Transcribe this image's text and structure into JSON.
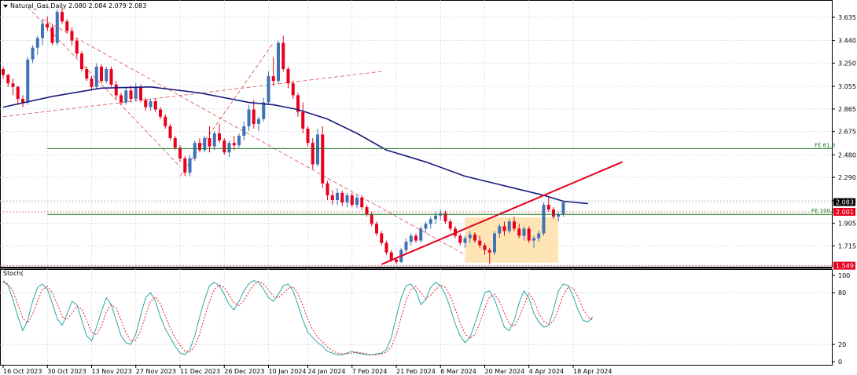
{
  "window": {
    "symbol": "Natural_Gas",
    "timeframe": "Daily",
    "header": "Natural_Gas,Daily  2.080 2.084 2.079 2.083"
  },
  "indicator_label": "Stoch(",
  "colors": {
    "background": "#ffffff",
    "grid": "#c8d4e0",
    "bull": "#3f73b7",
    "bear": "#e8001c",
    "ma": "#1a1a80",
    "trend_dashed": "#e06060",
    "trend_solid": "#e8001c",
    "fib": "#1f7a1f",
    "rect_fill": "#ffe0a8",
    "stoch_main": "#2aa8a8",
    "stoch_signal": "#e8001c",
    "price_tag_current": "#000000",
    "price_tag_levels": "#e8001c"
  },
  "chart_data": [
    {
      "type": "candlestick",
      "title": "Natural_Gas,Daily",
      "price_axis": [
        "3.635",
        "3.440",
        "3.250",
        "3.055",
        "2.865",
        "2.675",
        "2.480",
        "2.290",
        "2.095",
        "1.905",
        "1.715"
      ],
      "ylim": [
        1.54,
        3.78
      ],
      "xlabels": [
        "16 Oct 2023",
        "30 Oct 2023",
        "13 Nov 2023",
        "27 Nov 2023",
        "11 Dec 2023",
        "26 Dec 2023",
        "10 Jan 2024",
        "24 Jan 2024",
        "7 Feb 2024",
        "21 Feb 2024",
        "6 Mar 2024",
        "20 Mar 2024",
        "4 Apr 2024",
        "18 Apr 2024"
      ],
      "ohlc": [
        [
          3.2,
          3.22,
          3.12,
          3.15
        ],
        [
          3.15,
          3.16,
          3.05,
          3.08
        ],
        [
          3.08,
          3.12,
          2.98,
          3.05
        ],
        [
          3.05,
          3.06,
          2.9,
          2.95
        ],
        [
          2.95,
          2.98,
          2.88,
          2.92
        ],
        [
          2.92,
          3.3,
          2.9,
          3.28
        ],
        [
          3.28,
          3.4,
          3.25,
          3.38
        ],
        [
          3.38,
          3.48,
          3.32,
          3.46
        ],
        [
          3.46,
          3.62,
          3.4,
          3.58
        ],
        [
          3.58,
          3.64,
          3.52,
          3.55
        ],
        [
          3.55,
          3.58,
          3.4,
          3.42
        ],
        [
          3.42,
          3.7,
          3.4,
          3.68
        ],
        [
          3.68,
          3.72,
          3.58,
          3.6
        ],
        [
          3.6,
          3.62,
          3.5,
          3.52
        ],
        [
          3.52,
          3.55,
          3.4,
          3.44
        ],
        [
          3.44,
          3.46,
          3.3,
          3.33
        ],
        [
          3.33,
          3.35,
          3.18,
          3.2
        ],
        [
          3.2,
          3.22,
          3.1,
          3.12
        ],
        [
          3.12,
          3.14,
          3.02,
          3.05
        ],
        [
          3.05,
          3.25,
          3.03,
          3.22
        ],
        [
          3.22,
          3.24,
          3.08,
          3.1
        ],
        [
          3.1,
          3.22,
          3.08,
          3.2
        ],
        [
          3.2,
          3.22,
          3.05,
          3.07
        ],
        [
          3.07,
          3.1,
          2.95,
          2.98
        ],
        [
          2.98,
          3.0,
          2.9,
          2.92
        ],
        [
          2.92,
          3.05,
          2.9,
          3.02
        ],
        [
          3.02,
          3.06,
          2.92,
          2.95
        ],
        [
          2.95,
          3.08,
          2.93,
          3.05
        ],
        [
          3.05,
          3.07,
          2.92,
          2.94
        ],
        [
          2.94,
          2.96,
          2.85,
          2.88
        ],
        [
          2.88,
          2.95,
          2.85,
          2.93
        ],
        [
          2.93,
          2.95,
          2.84,
          2.86
        ],
        [
          2.86,
          2.88,
          2.78,
          2.8
        ],
        [
          2.8,
          2.82,
          2.7,
          2.72
        ],
        [
          2.72,
          2.74,
          2.6,
          2.62
        ],
        [
          2.62,
          2.64,
          2.52,
          2.54
        ],
        [
          2.54,
          2.56,
          2.42,
          2.45
        ],
        [
          2.45,
          2.47,
          2.3,
          2.33
        ],
        [
          2.33,
          2.48,
          2.3,
          2.45
        ],
        [
          2.45,
          2.6,
          2.43,
          2.58
        ],
        [
          2.58,
          2.62,
          2.5,
          2.52
        ],
        [
          2.52,
          2.64,
          2.5,
          2.62
        ],
        [
          2.62,
          2.72,
          2.5,
          2.55
        ],
        [
          2.55,
          2.68,
          2.52,
          2.66
        ],
        [
          2.66,
          2.74,
          2.58,
          2.6
        ],
        [
          2.6,
          2.62,
          2.48,
          2.5
        ],
        [
          2.5,
          2.6,
          2.46,
          2.58
        ],
        [
          2.58,
          2.64,
          2.52,
          2.56
        ],
        [
          2.56,
          2.66,
          2.54,
          2.64
        ],
        [
          2.64,
          2.76,
          2.6,
          2.72
        ],
        [
          2.72,
          2.9,
          2.68,
          2.86
        ],
        [
          2.86,
          2.94,
          2.7,
          2.74
        ],
        [
          2.74,
          2.8,
          2.68,
          2.78
        ],
        [
          2.78,
          2.96,
          2.76,
          2.92
        ],
        [
          2.92,
          3.18,
          2.9,
          3.14
        ],
        [
          3.14,
          3.3,
          3.06,
          3.1
        ],
        [
          3.1,
          3.44,
          3.08,
          3.42
        ],
        [
          3.42,
          3.48,
          3.18,
          3.2
        ],
        [
          3.2,
          3.22,
          3.04,
          3.08
        ],
        [
          3.08,
          3.1,
          2.95,
          2.98
        ],
        [
          2.98,
          3.0,
          2.8,
          2.84
        ],
        [
          2.84,
          2.92,
          2.66,
          2.7
        ],
        [
          2.7,
          2.72,
          2.55,
          2.58
        ],
        [
          2.58,
          2.62,
          2.36,
          2.4
        ],
        [
          2.4,
          2.7,
          2.38,
          2.65
        ],
        [
          2.65,
          2.72,
          2.2,
          2.24
        ],
        [
          2.24,
          2.26,
          2.1,
          2.14
        ],
        [
          2.14,
          2.18,
          2.06,
          2.1
        ],
        [
          2.1,
          2.2,
          2.06,
          2.16
        ],
        [
          2.16,
          2.18,
          2.05,
          2.08
        ],
        [
          2.08,
          2.16,
          2.04,
          2.14
        ],
        [
          2.14,
          2.16,
          2.04,
          2.06
        ],
        [
          2.06,
          2.14,
          2.03,
          2.12
        ],
        [
          2.12,
          2.14,
          2.02,
          2.04
        ],
        [
          2.04,
          2.06,
          1.96,
          1.98
        ],
        [
          1.98,
          2.0,
          1.88,
          1.9
        ],
        [
          1.9,
          1.92,
          1.8,
          1.82
        ],
        [
          1.82,
          1.84,
          1.72,
          1.74
        ],
        [
          1.74,
          1.76,
          1.64,
          1.66
        ],
        [
          1.66,
          1.68,
          1.58,
          1.6
        ],
        [
          1.6,
          1.62,
          1.56,
          1.58
        ],
        [
          1.58,
          1.7,
          1.57,
          1.68
        ],
        [
          1.68,
          1.78,
          1.66,
          1.75
        ],
        [
          1.75,
          1.82,
          1.72,
          1.8
        ],
        [
          1.8,
          1.82,
          1.74,
          1.76
        ],
        [
          1.76,
          1.88,
          1.74,
          1.86
        ],
        [
          1.86,
          1.92,
          1.82,
          1.9
        ],
        [
          1.9,
          1.96,
          1.86,
          1.94
        ],
        [
          1.94,
          2.0,
          1.9,
          1.97
        ],
        [
          1.97,
          2.02,
          1.93,
          1.99
        ],
        [
          1.99,
          2.01,
          1.9,
          1.92
        ],
        [
          1.92,
          1.94,
          1.84,
          1.86
        ],
        [
          1.86,
          1.88,
          1.78,
          1.8
        ],
        [
          1.8,
          1.82,
          1.72,
          1.74
        ],
        [
          1.74,
          1.8,
          1.7,
          1.78
        ],
        [
          1.78,
          1.84,
          1.74,
          1.81
        ],
        [
          1.81,
          1.83,
          1.74,
          1.76
        ],
        [
          1.76,
          1.8,
          1.7,
          1.72
        ],
        [
          1.72,
          1.74,
          1.64,
          1.68
        ],
        [
          1.68,
          1.7,
          1.56,
          1.66
        ],
        [
          1.66,
          1.84,
          1.64,
          1.82
        ],
        [
          1.82,
          1.9,
          1.78,
          1.88
        ],
        [
          1.88,
          1.92,
          1.8,
          1.84
        ],
        [
          1.84,
          1.94,
          1.82,
          1.92
        ],
        [
          1.92,
          1.96,
          1.84,
          1.86
        ],
        [
          1.86,
          1.9,
          1.78,
          1.8
        ],
        [
          1.8,
          1.88,
          1.76,
          1.86
        ],
        [
          1.86,
          1.88,
          1.74,
          1.76
        ],
        [
          1.76,
          1.8,
          1.7,
          1.78
        ],
        [
          1.78,
          1.84,
          1.75,
          1.82
        ],
        [
          1.82,
          2.08,
          1.8,
          2.06
        ],
        [
          2.06,
          2.12,
          2.0,
          2.02
        ],
        [
          2.02,
          2.04,
          1.94,
          1.96
        ],
        [
          1.96,
          2.0,
          1.92,
          1.98
        ],
        [
          1.98,
          2.09,
          1.96,
          2.08
        ]
      ],
      "moving_average": [
        [
          0,
          2.88
        ],
        [
          10,
          2.97
        ],
        [
          20,
          3.04
        ],
        [
          30,
          3.05
        ],
        [
          40,
          3.0
        ],
        [
          50,
          2.92
        ],
        [
          55,
          2.9
        ],
        [
          60,
          2.86
        ],
        [
          66,
          2.78
        ],
        [
          72,
          2.66
        ],
        [
          78,
          2.52
        ],
        [
          86,
          2.42
        ],
        [
          94,
          2.3
        ],
        [
          102,
          2.22
        ],
        [
          110,
          2.14
        ],
        [
          114,
          2.09
        ],
        [
          119,
          2.07
        ]
      ],
      "current_price_tag": "2.083",
      "level_tags": [
        "2.001",
        "1.549"
      ],
      "fib_labels": [
        "FE 61.8",
        "FE 100.0"
      ]
    },
    {
      "type": "line",
      "title": "Stoch(",
      "yticks": [
        "100",
        "80",
        "20",
        "0"
      ],
      "ylim": [
        0,
        100
      ],
      "series": [
        {
          "name": "main",
          "values": [
            94,
            88,
            72,
            52,
            36,
            48,
            70,
            86,
            90,
            84,
            68,
            50,
            42,
            55,
            70,
            66,
            48,
            30,
            24,
            40,
            58,
            74,
            66,
            48,
            30,
            22,
            20,
            32,
            54,
            74,
            80,
            70,
            52,
            38,
            28,
            18,
            10,
            8,
            14,
            30,
            52,
            72,
            88,
            92,
            88,
            78,
            66,
            60,
            70,
            82,
            90,
            94,
            92,
            84,
            74,
            70,
            78,
            88,
            90,
            82,
            66,
            48,
            34,
            28,
            22,
            18,
            12,
            10,
            8,
            8,
            10,
            12,
            10,
            9,
            8,
            8,
            9,
            10,
            14,
            28,
            52,
            74,
            88,
            90,
            82,
            66,
            72,
            86,
            92,
            88,
            78,
            62,
            44,
            30,
            22,
            28,
            44,
            62,
            80,
            82,
            72,
            56,
            40,
            36,
            48,
            68,
            82,
            74,
            56,
            46,
            40,
            42,
            60,
            82,
            90,
            88,
            76,
            60,
            48,
            46,
            52
          ]
        },
        {
          "name": "signal",
          "values": [
            92,
            90,
            82,
            66,
            50,
            45,
            55,
            70,
            84,
            87,
            80,
            67,
            52,
            49,
            56,
            64,
            61,
            48,
            34,
            31,
            41,
            58,
            66,
            62,
            48,
            33,
            24,
            25,
            36,
            54,
            70,
            75,
            67,
            53,
            39,
            28,
            19,
            12,
            11,
            18,
            32,
            52,
            70,
            84,
            89,
            86,
            77,
            68,
            65,
            71,
            81,
            89,
            93,
            90,
            83,
            76,
            74,
            79,
            85,
            87,
            79,
            65,
            49,
            37,
            28,
            23,
            17,
            13,
            10,
            9,
            9,
            10,
            11,
            10,
            9,
            8,
            8,
            9,
            11,
            17,
            31,
            51,
            71,
            84,
            87,
            80,
            73,
            77,
            83,
            89,
            86,
            76,
            61,
            45,
            32,
            27,
            31,
            45,
            62,
            75,
            78,
            70,
            56,
            44,
            41,
            51,
            66,
            79,
            71,
            56,
            47,
            43,
            47,
            61,
            77,
            87,
            85,
            75,
            61,
            52,
            48
          ]
        }
      ]
    }
  ]
}
